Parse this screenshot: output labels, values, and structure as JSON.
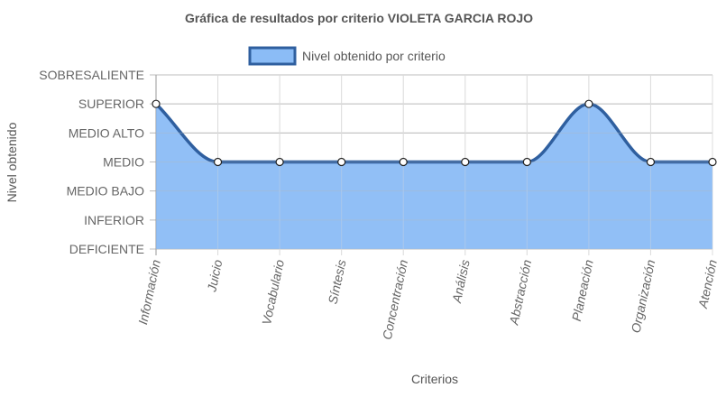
{
  "chart_data": {
    "type": "area",
    "title": "Gráfica de resultados por criterio VIOLETA GARCIA ROJO",
    "xlabel": "Criterios",
    "ylabel": "Nivel obtenido",
    "categories": [
      "Información",
      "Juicio",
      "Vocabulario",
      "Síntesis",
      "Concentración",
      "Análisis",
      "Abstracción",
      "Planeación",
      "Organización",
      "Atención"
    ],
    "y_levels": [
      "DEFICIENTE",
      "INFERIOR",
      "MEDIO BAJO",
      "MEDIO",
      "MEDIO ALTO",
      "SUPERIOR",
      "SOBRESALIENTE"
    ],
    "ylim": [
      0,
      6
    ],
    "grid": true,
    "legend_position": "top",
    "series": [
      {
        "name": "Nivel obtenido por criterio",
        "values": [
          5,
          3,
          3,
          3,
          3,
          3,
          3,
          5,
          3,
          3
        ],
        "line_color": "#2f5f9f",
        "fill_color": "#8bbcf6"
      }
    ]
  }
}
